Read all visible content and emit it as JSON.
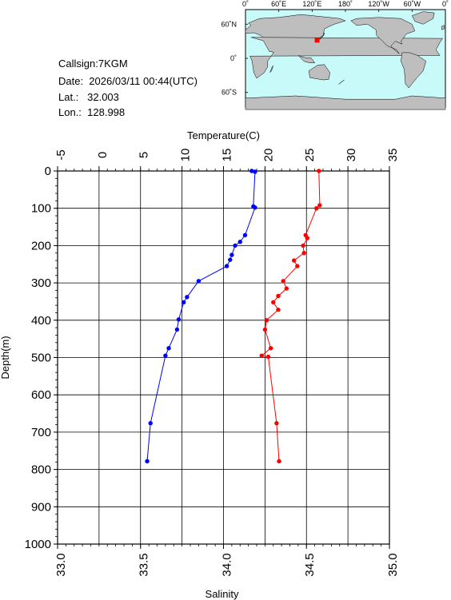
{
  "header": {
    "callsign": "Callsign:7KGM",
    "date": "Date:  2026/03/11 00:44(UTC)",
    "lat": "Lat.:   32.003",
    "lon": "Lon.:  128.998"
  },
  "map": {
    "top_lon_labels": [
      "0˚",
      "60˚E",
      "120˚E",
      "180˚",
      "120˚W",
      "60˚W",
      "0˚"
    ],
    "lat_labels": [
      "60˚N",
      "0˚",
      "60˚S"
    ],
    "ocean_color": "#c8fafa",
    "land_color": "#bebebe",
    "station_color": "#ff0000"
  },
  "chart_data": {
    "type": "line",
    "temperature_axis": {
      "label": "Temperature(C)",
      "range": [
        -5,
        35
      ],
      "ticks": [
        "-5",
        "0",
        "5",
        "10",
        "15",
        "20",
        "25",
        "30",
        "35"
      ]
    },
    "salinity_axis": {
      "label": "Salinity",
      "range": [
        33.0,
        35.0
      ],
      "ticks": [
        "33.0",
        "33.5",
        "34.0",
        "34.5",
        "35.0"
      ]
    },
    "depth_axis": {
      "label": "Depth(m)",
      "range": [
        0,
        1000
      ],
      "inverted": true,
      "ticks": [
        "0",
        "100",
        "200",
        "300",
        "400",
        "500",
        "600",
        "700",
        "800",
        "900",
        "1000"
      ]
    },
    "grid": true,
    "series": [
      {
        "color": "#0000ff",
        "points": [
          {
            "value": 34.17,
            "depth": 0
          },
          {
            "value": 34.19,
            "depth": 2
          },
          {
            "value": 34.18,
            "depth": 95
          },
          {
            "value": 34.19,
            "depth": 98
          },
          {
            "value": 34.13,
            "depth": 172
          },
          {
            "value": 34.1,
            "depth": 190
          },
          {
            "value": 34.07,
            "depth": 200
          },
          {
            "value": 34.05,
            "depth": 225
          },
          {
            "value": 34.04,
            "depth": 238
          },
          {
            "value": 34.02,
            "depth": 255
          },
          {
            "value": 33.85,
            "depth": 295
          },
          {
            "value": 33.78,
            "depth": 338
          },
          {
            "value": 33.76,
            "depth": 352
          },
          {
            "value": 33.73,
            "depth": 398
          },
          {
            "value": 33.72,
            "depth": 425
          },
          {
            "value": 33.67,
            "depth": 475
          },
          {
            "value": 33.65,
            "depth": 495
          },
          {
            "value": 33.56,
            "depth": 676
          },
          {
            "value": 33.54,
            "depth": 778
          }
        ]
      },
      {
        "color": "#ff0000",
        "points": [
          {
            "value": 26.5,
            "depth": 0
          },
          {
            "value": 26.6,
            "depth": 92
          },
          {
            "value": 26.2,
            "depth": 100
          },
          {
            "value": 24.9,
            "depth": 172
          },
          {
            "value": 25.1,
            "depth": 180
          },
          {
            "value": 24.6,
            "depth": 200
          },
          {
            "value": 24.7,
            "depth": 220
          },
          {
            "value": 23.5,
            "depth": 240
          },
          {
            "value": 23.9,
            "depth": 255
          },
          {
            "value": 22.2,
            "depth": 295
          },
          {
            "value": 22.6,
            "depth": 315
          },
          {
            "value": 21.6,
            "depth": 335
          },
          {
            "value": 21.0,
            "depth": 352
          },
          {
            "value": 21.6,
            "depth": 372
          },
          {
            "value": 20.2,
            "depth": 400
          },
          {
            "value": 20.0,
            "depth": 425
          },
          {
            "value": 20.7,
            "depth": 475
          },
          {
            "value": 19.6,
            "depth": 495
          },
          {
            "value": 20.4,
            "depth": 498
          },
          {
            "value": 21.4,
            "depth": 676
          },
          {
            "value": 21.7,
            "depth": 778
          }
        ]
      }
    ]
  }
}
